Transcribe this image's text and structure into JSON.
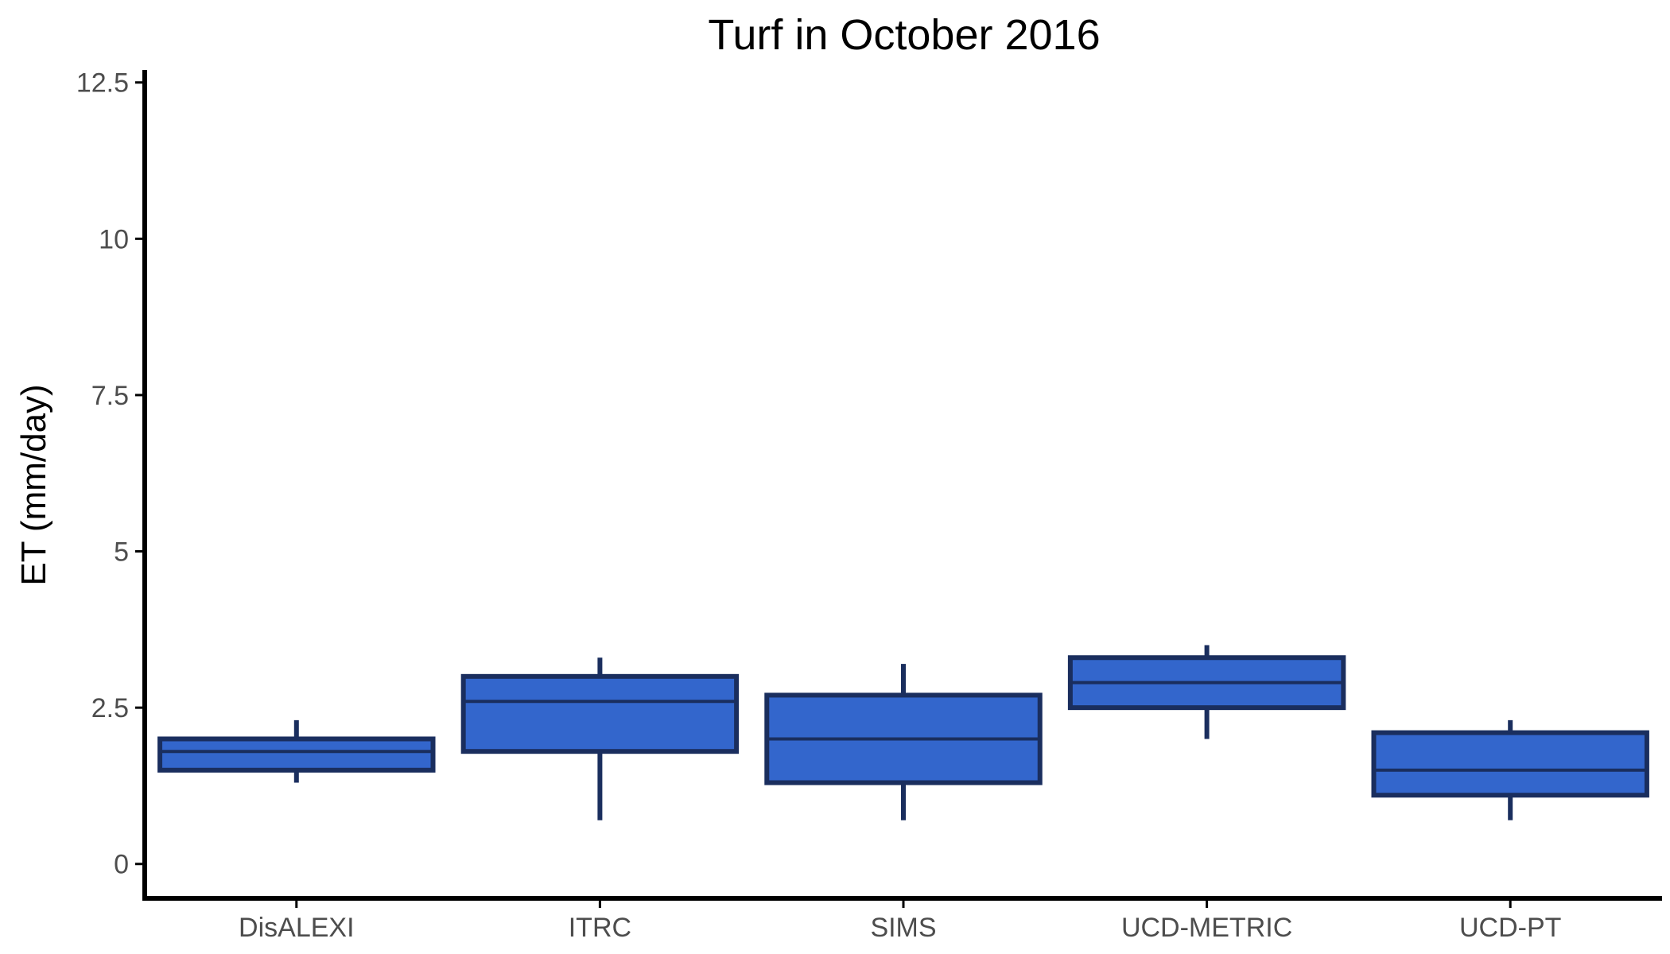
{
  "chart_data": {
    "type": "box",
    "title": "Turf in October 2016",
    "xlabel": "",
    "ylabel": "ET (mm/day)",
    "ylim": [
      -0.55,
      12.7
    ],
    "yticks": [
      0,
      2.5,
      5,
      7.5,
      10,
      12.5
    ],
    "ytick_labels": [
      "0",
      "2.5",
      "5",
      "7.5",
      "10",
      "12.5"
    ],
    "categories": [
      "DisALEXI",
      "ITRC",
      "SIMS",
      "UCD-METRIC",
      "UCD-PT"
    ],
    "boxes": [
      {
        "min": 1.3,
        "q1": 1.5,
        "median": 1.8,
        "q3": 2.0,
        "max": 2.3
      },
      {
        "min": 0.7,
        "q1": 1.8,
        "median": 2.6,
        "q3": 3.0,
        "max": 3.3
      },
      {
        "min": 0.7,
        "q1": 1.3,
        "median": 2.0,
        "q3": 2.7,
        "max": 3.2
      },
      {
        "min": 2.0,
        "q1": 2.5,
        "median": 2.9,
        "q3": 3.3,
        "max": 3.5
      },
      {
        "min": 0.7,
        "q1": 1.1,
        "median": 1.5,
        "q3": 2.1,
        "max": 2.3
      }
    ],
    "grid": false,
    "legend": "none",
    "colors": {
      "box_fill": "#3366cc",
      "box_outline": "#1a2e5e",
      "axis": "#000000",
      "tick_label": "#4d4d4d"
    }
  }
}
